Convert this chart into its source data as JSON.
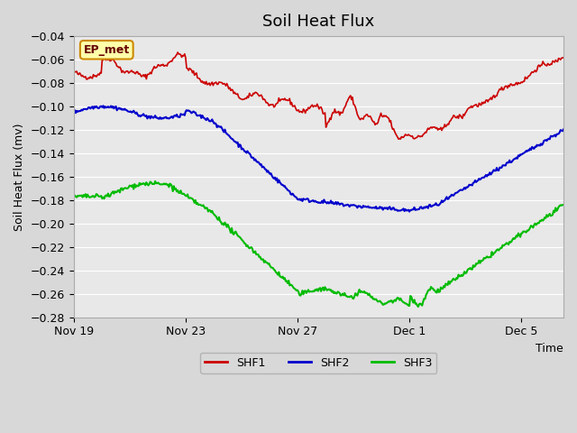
{
  "title": "Soil Heat Flux",
  "ylabel": "Soil Heat Flux (mv)",
  "xlabel": "Time",
  "ylim": [
    -0.28,
    -0.04
  ],
  "yticks": [
    -0.28,
    -0.26,
    -0.24,
    -0.22,
    -0.2,
    -0.18,
    -0.16,
    -0.14,
    -0.12,
    -0.1,
    -0.08,
    -0.06,
    -0.04
  ],
  "xtick_labels": [
    "Nov 19",
    "Nov 23",
    "Nov 27",
    "Dec 1",
    "Dec 5"
  ],
  "xtick_positions": [
    0,
    4,
    8,
    12,
    16
  ],
  "total_days": 18,
  "bg_color": "#d8d8d8",
  "plot_bg_color": "#e8e8e8",
  "line_colors": {
    "SHF1": "#cc0000",
    "SHF2": "#0000cc",
    "SHF3": "#00bb00"
  },
  "line_widths": {
    "SHF1": 1.2,
    "SHF2": 1.5,
    "SHF3": 1.5
  },
  "annotation_text": "EP_met",
  "annotation_bg": "#ffffaa",
  "annotation_border": "#cc8800",
  "legend_position": "lower center"
}
